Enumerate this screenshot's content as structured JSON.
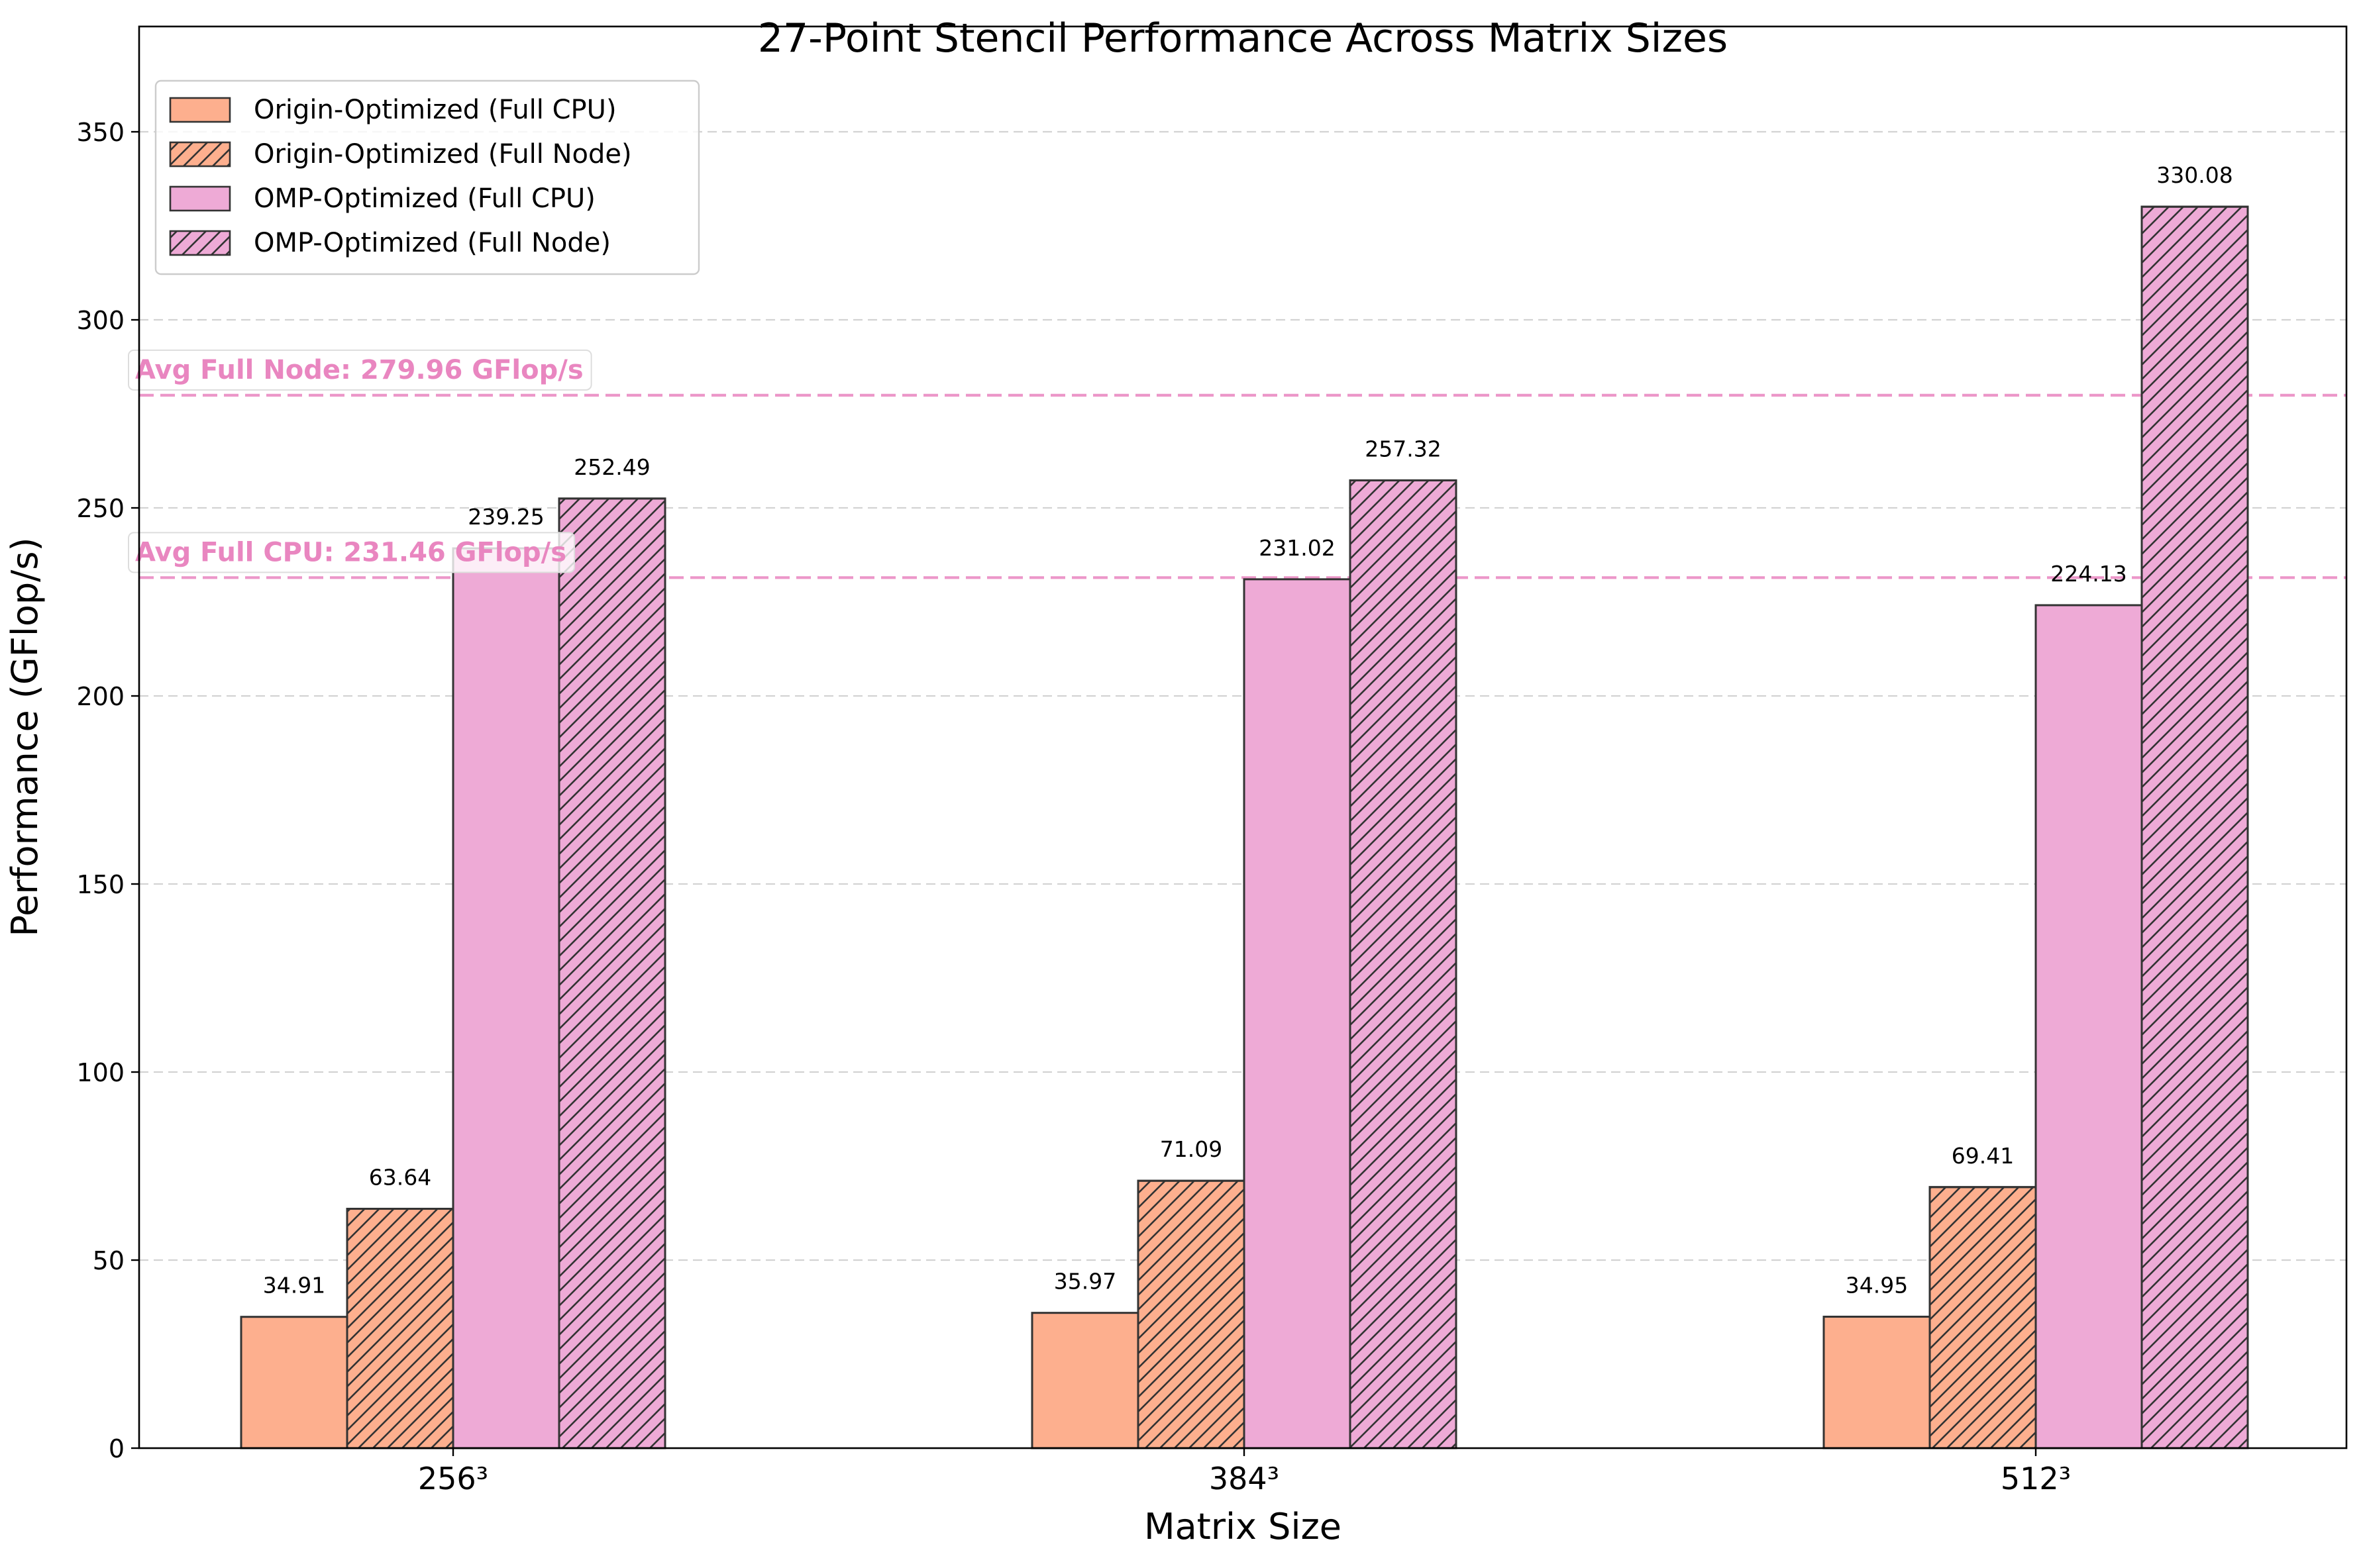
{
  "chart_data": {
    "type": "bar",
    "title": "27-Point Stencil Performance Across Matrix Sizes",
    "xlabel": "Matrix Size",
    "ylabel": "Performance (GFlop/s)",
    "ylim": [
      0,
      378
    ],
    "yticks": [
      0,
      50,
      100,
      150,
      200,
      250,
      300,
      350
    ],
    "grid": "horizontal dashed",
    "legend_position": "top-left",
    "categories": [
      "256³",
      "384³",
      "512³"
    ],
    "series": [
      {
        "name": "Origin-Optimized (Full CPU)",
        "color": "#fdaf8e",
        "hatch": false,
        "values": [
          34.91,
          35.97,
          34.95
        ],
        "labels": [
          "34.91",
          "35.97",
          "34.95"
        ]
      },
      {
        "name": "Origin-Optimized (Full Node)",
        "color": "#fdaf8e",
        "hatch": true,
        "values": [
          63.64,
          71.09,
          69.41
        ],
        "labels": [
          "63.64",
          "71.09",
          "69.41"
        ]
      },
      {
        "name": "OMP-Optimized (Full CPU)",
        "color": "#eeaad6",
        "hatch": false,
        "values": [
          239.25,
          231.02,
          224.13
        ],
        "labels": [
          "239.25",
          "231.02",
          "224.13"
        ]
      },
      {
        "name": "OMP-Optimized (Full Node)",
        "color": "#eeaad6",
        "hatch": true,
        "values": [
          252.49,
          257.32,
          330.08
        ],
        "labels": [
          "252.49",
          "257.32",
          "330.08"
        ]
      }
    ],
    "reference_lines": [
      {
        "label": "Avg Full Node: 279.96 GFlop/s",
        "value": 279.96,
        "color": "#e986c0"
      },
      {
        "label": "Avg Full CPU: 231.46 GFlop/s",
        "value": 231.46,
        "color": "#e986c0"
      }
    ]
  }
}
